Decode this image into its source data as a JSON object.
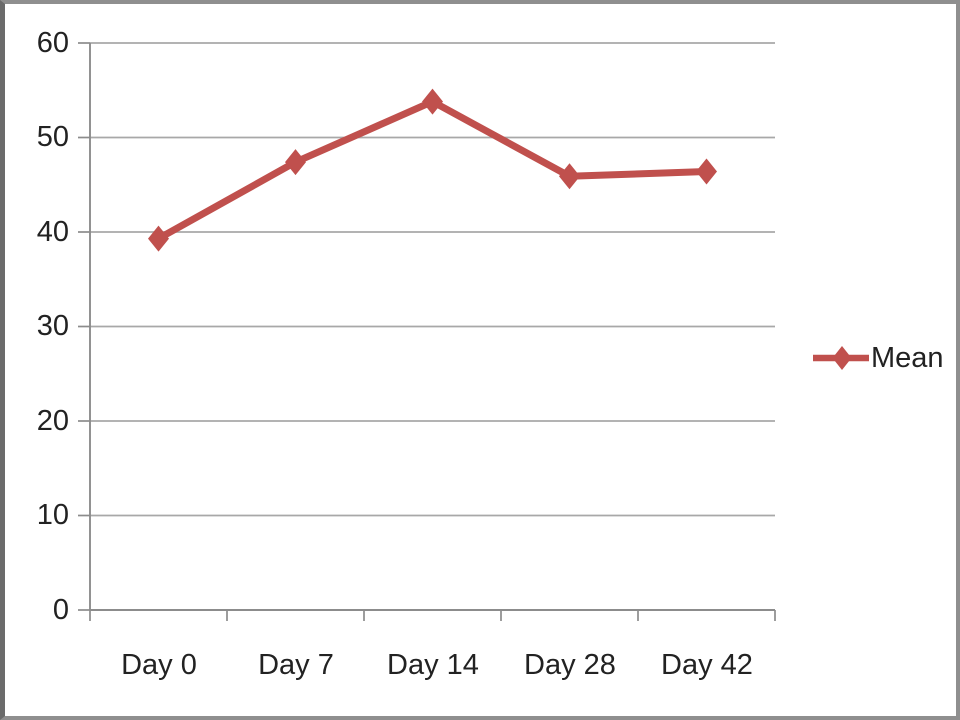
{
  "colors": {
    "series": "#C0504D",
    "gridline": "#A8A8A8",
    "axis": "#8C8C8C",
    "text": "#222222",
    "frame_border": "#8F8F8F",
    "background": "#FFFFFF"
  },
  "chart_data": {
    "type": "line",
    "categories": [
      "Day 0",
      "Day 7",
      "Day 14",
      "Day 28",
      "Day 42"
    ],
    "series": [
      {
        "name": "Mean",
        "values": [
          39.3,
          47.4,
          53.8,
          45.9,
          46.4
        ],
        "color": "#C0504D",
        "marker": "diamond"
      }
    ],
    "ylim": [
      0,
      60
    ],
    "yticks": [
      0,
      10,
      20,
      30,
      40,
      50,
      60
    ],
    "yticklabels": [
      "0",
      "10",
      "20",
      "30",
      "40",
      "50",
      "60"
    ],
    "grid": true,
    "legend_position": "right"
  }
}
